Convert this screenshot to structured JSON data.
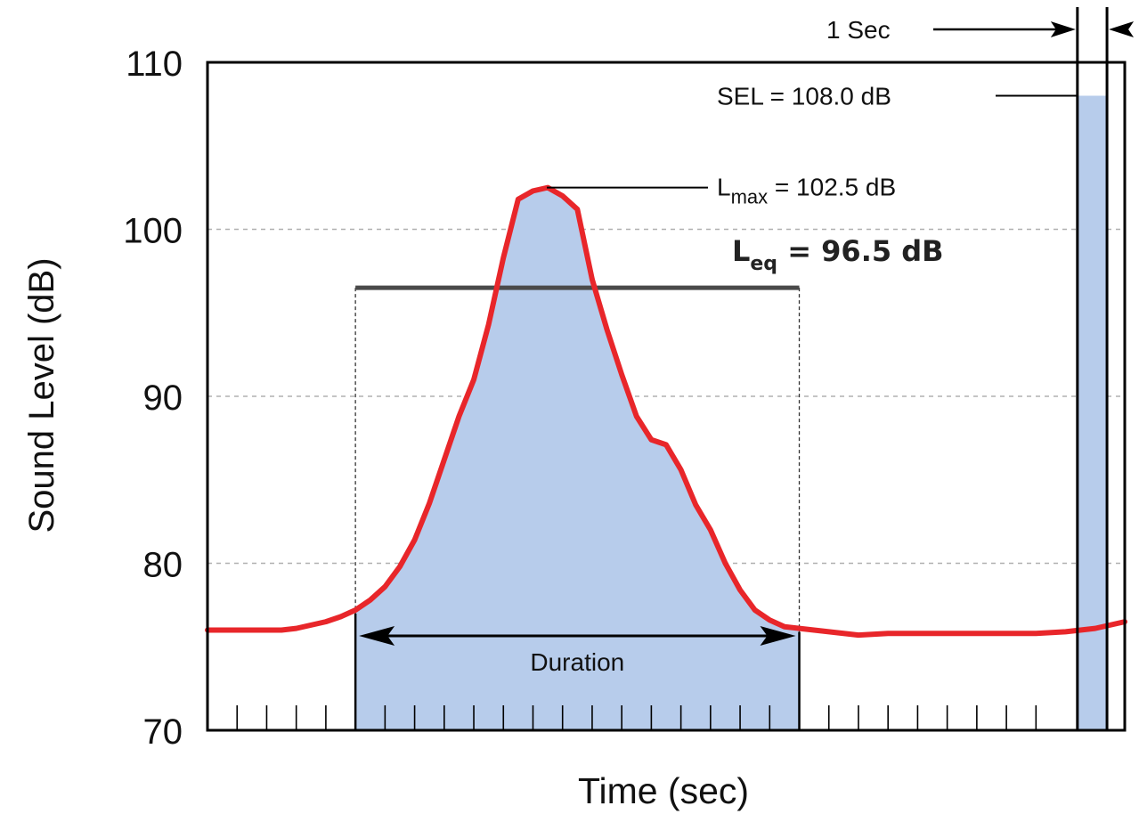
{
  "chart_data": {
    "type": "area",
    "title": "",
    "xlabel": "Time (sec)",
    "ylabel": "Sound Level (dB)",
    "ylim": [
      70,
      110
    ],
    "yticks": [
      {
        "value": 110,
        "label": "110"
      },
      {
        "value": 100,
        "label": "100"
      },
      {
        "value": 90,
        "label": "90"
      },
      {
        "value": 80,
        "label": "80"
      },
      {
        "value": 70,
        "label": "70"
      }
    ],
    "grid": true,
    "xlim": [
      0,
      31
    ],
    "x_tick_count": 31,
    "series": [
      {
        "color": "#e8262a",
        "fill_color": "#b7cceb",
        "fill_range": [
          5,
          20
        ],
        "x": [
          0,
          1,
          2,
          2.5,
          3,
          3.5,
          4,
          4.5,
          5,
          5.5,
          6,
          6.5,
          7,
          7.5,
          8,
          8.5,
          9,
          9.5,
          10,
          10.5,
          11,
          11.5,
          12,
          12.5,
          13,
          13.5,
          14,
          14.5,
          15,
          15.5,
          16,
          16.5,
          17,
          17.5,
          18,
          18.5,
          19,
          19.5,
          20,
          20.5,
          21,
          22,
          23,
          24,
          25,
          26,
          27,
          28,
          29,
          30,
          31
        ],
        "values": [
          76.0,
          76.0,
          76.0,
          76.0,
          76.1,
          76.3,
          76.5,
          76.8,
          77.2,
          77.8,
          78.6,
          79.8,
          81.4,
          83.6,
          86.2,
          88.8,
          91.0,
          94.3,
          98.3,
          101.8,
          102.3,
          102.5,
          102.0,
          101.2,
          97.0,
          94.0,
          91.3,
          88.8,
          87.4,
          87.1,
          85.6,
          83.5,
          82.0,
          80.0,
          78.4,
          77.2,
          76.6,
          76.2,
          76.1,
          76.0,
          75.9,
          75.7,
          75.8,
          75.8,
          75.8,
          75.8,
          75.8,
          75.8,
          75.9,
          76.1,
          76.5
        ]
      }
    ],
    "annotations": {
      "sel": {
        "text": "SEL  = 108.0 dB",
        "value": 108.0
      },
      "lmax": {
        "main": "L",
        "sub": "max",
        "rest": " = 102.5 dB",
        "value": 102.5
      },
      "leq": {
        "main": "L",
        "sub": "eq",
        "rest": " = 96.5 dB",
        "value": 96.5,
        "x_start": 5,
        "x_end": 20
      },
      "duration": {
        "text": "Duration",
        "x_start": 5,
        "x_end": 20
      },
      "one_second": {
        "text": "1 Sec",
        "x_start": 29.4,
        "x_end": 30.4
      }
    }
  }
}
